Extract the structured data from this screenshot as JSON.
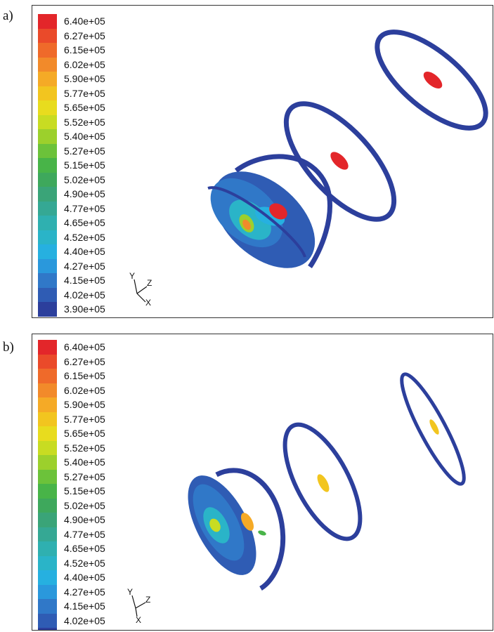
{
  "panels": [
    {
      "label": "a)"
    },
    {
      "label": "b)"
    }
  ],
  "colorbar": {
    "values": [
      "6.40e+05",
      "6.27e+05",
      "6.15e+05",
      "6.02e+05",
      "5.90e+05",
      "5.77e+05",
      "5.65e+05",
      "5.52e+05",
      "5.40e+05",
      "5.27e+05",
      "5.15e+05",
      "5.02e+05",
      "4.90e+05",
      "4.77e+05",
      "4.65e+05",
      "4.52e+05",
      "4.40e+05",
      "4.27e+05",
      "4.15e+05",
      "4.02e+05",
      "3.90e+05"
    ],
    "colors": [
      "#e3262a",
      "#ea4a2a",
      "#ef6a2a",
      "#f28a2a",
      "#f5aa26",
      "#f2c51f",
      "#e8dc1e",
      "#c8dc22",
      "#9cd02c",
      "#6cc23a",
      "#48b448",
      "#3ea85c",
      "#3aa478",
      "#35a894",
      "#2fb0b0",
      "#2ab4c8",
      "#26b0e0",
      "#2a98dc",
      "#3078c8",
      "#2f5cb4",
      "#2c3f9c"
    ]
  },
  "axes": {
    "y": "Y",
    "z": "Z",
    "x": "X"
  }
}
